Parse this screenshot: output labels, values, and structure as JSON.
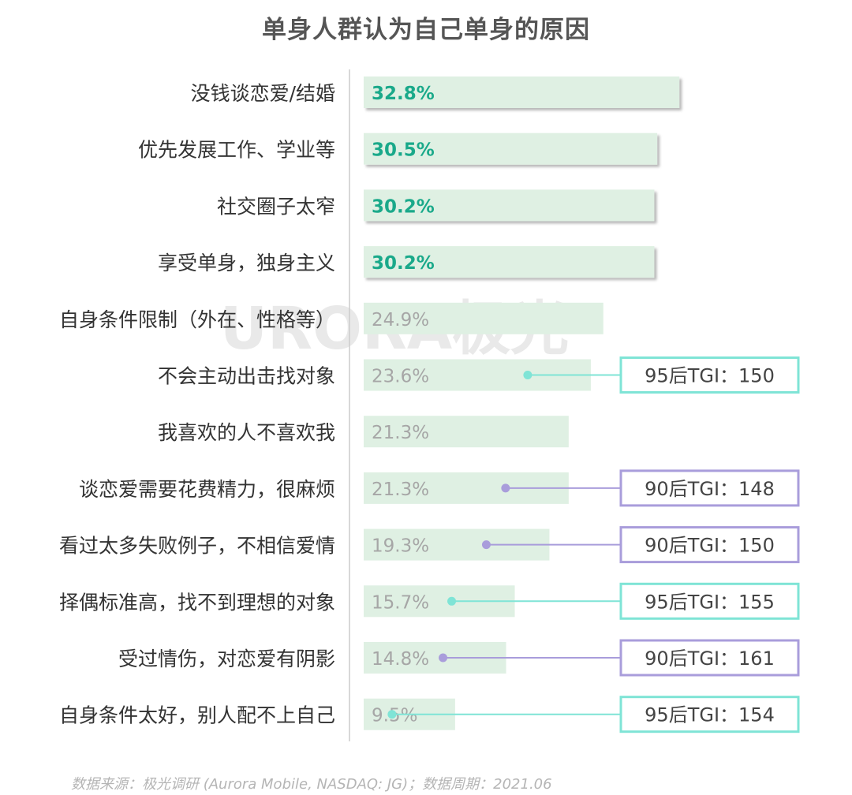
{
  "title": "单身人群认为自己单身的原因",
  "source": "数据来源：极光调研 (Aurora Mobile, NASDAQ: JG)；数据周期：2021.06",
  "watermark": "URORA极光",
  "colors": {
    "bar_fill": "#dff0e3",
    "highlight_text": "#1aa98a",
    "normal_text": "#a6a6a6",
    "tgi_95": "#7fe4d6",
    "tgi_90": "#a99ddb",
    "label_text": "#333333",
    "axis": "#cccccc"
  },
  "chart_data": {
    "type": "bar",
    "orientation": "horizontal",
    "categories": [
      "没钱谈恋爱/结婚",
      "优先发展工作、学业等",
      "社交圈子太窄",
      "享受单身，独身主义",
      "自身条件限制（外在、性格等）",
      "不会主动出击找对象",
      "我喜欢的人不喜欢我",
      "谈恋爱需要花费精力，很麻烦",
      "看过太多失败例子，不相信爱情",
      "择偶标准高，找不到理想的对象",
      "受过情伤，对恋爱有阴影",
      "自身条件太好，别人配不上自己"
    ],
    "values": [
      32.8,
      30.5,
      30.2,
      30.2,
      24.9,
      23.6,
      21.3,
      21.3,
      19.3,
      15.7,
      14.8,
      9.5
    ],
    "value_labels": [
      "32.8%",
      "30.5%",
      "30.2%",
      "30.2%",
      "24.9%",
      "23.6%",
      "21.3%",
      "21.3%",
      "19.3%",
      "15.7%",
      "14.8%",
      "9.5%"
    ],
    "highlighted": [
      true,
      true,
      true,
      true,
      false,
      false,
      false,
      false,
      false,
      false,
      false,
      false
    ],
    "annotations": [
      {
        "index": 5,
        "text": "95后TGI：150",
        "group": "95后"
      },
      {
        "index": 7,
        "text": "90后TGI：148",
        "group": "90后"
      },
      {
        "index": 8,
        "text": "90后TGI：150",
        "group": "90后"
      },
      {
        "index": 9,
        "text": "95后TGI：155",
        "group": "95后"
      },
      {
        "index": 10,
        "text": "90后TGI：161",
        "group": "90后"
      },
      {
        "index": 11,
        "text": "95后TGI：154",
        "group": "95后"
      }
    ]
  }
}
